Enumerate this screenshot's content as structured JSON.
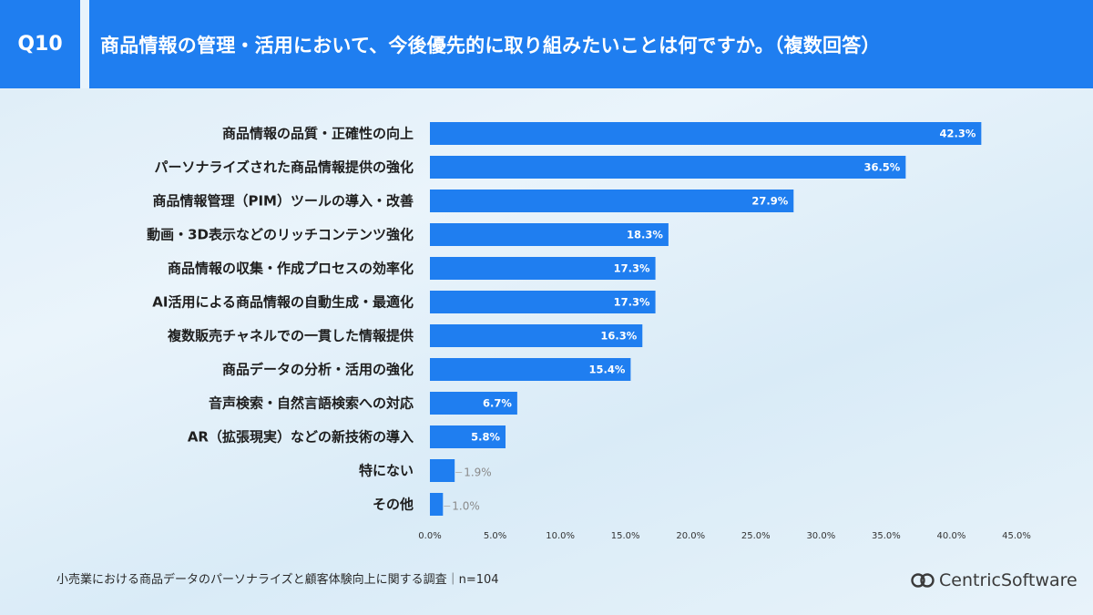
{
  "header": {
    "question_no": "Q10",
    "title": "商品情報の管理・活用において、今後優先的に取り組みたいことは何ですか。（複数回答）"
  },
  "chart_data": {
    "type": "bar",
    "orientation": "horizontal",
    "title": "商品情報の管理・活用において、今後優先的に取り組みたいことは何ですか。（複数回答）",
    "categories": [
      "商品情報の品質・正確性の向上",
      "パーソナライズされた商品情報提供の強化",
      "商品情報管理（PIM）ツールの導入・改善",
      "動画・3D表示などのリッチコンテンツ強化",
      "商品情報の収集・作成プロセスの効率化",
      "AI活用による商品情報の自動生成・最適化",
      "複数販売チャネルでの一貫した情報提供",
      "商品データの分析・活用の強化",
      "音声検索・自然言語検索への対応",
      "AR（拡張現実）などの新技術の導入",
      "特にない",
      "その他"
    ],
    "values": [
      42.3,
      36.5,
      27.9,
      18.3,
      17.3,
      17.3,
      16.3,
      15.4,
      6.7,
      5.8,
      1.9,
      1.0
    ],
    "value_labels": [
      "42.3%",
      "36.5%",
      "27.9%",
      "18.3%",
      "17.3%",
      "17.3%",
      "16.3%",
      "15.4%",
      "6.7%",
      "5.8%",
      "1.9%",
      "1.0%"
    ],
    "xlim": [
      0,
      45
    ],
    "ticks": [
      0,
      5,
      10,
      15,
      20,
      25,
      30,
      35,
      40,
      45
    ],
    "tick_labels": [
      "0.0%",
      "5.0%",
      "10.0%",
      "15.0%",
      "20.0%",
      "25.0%",
      "30.0%",
      "35.0%",
      "40.0%",
      "45.0%"
    ],
    "unit": "%",
    "bar_color": "#1f7ef0",
    "grid": false
  },
  "footer": {
    "note": "小売業における商品データのパーソナライズと顧客体験向上に関する調査｜n=104",
    "logo_text": "CentricSoftware",
    "logo_icon": "centric-logo-icon"
  },
  "colors": {
    "header_bg": "#1f7ef0",
    "label_inside": "#ffffff",
    "label_outside": "#8a8a8a"
  }
}
